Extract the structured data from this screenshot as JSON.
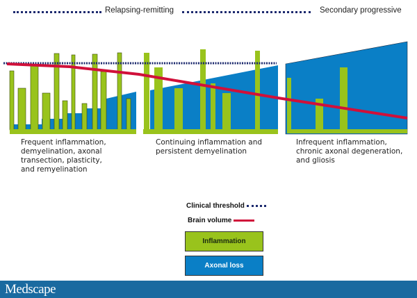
{
  "header": {
    "phase1": "Relapsing-remitting",
    "phase2": "Secondary progressive"
  },
  "captions": [
    "Frequent inflammation,\ndemyelination, axonal\ntransection, plasticity,\nand remyelination",
    "Continuing inflammation and\npersistent demyelination",
    "Infrequent inflammation,\nchronic axonal degeneration,\nand gliosis"
  ],
  "legend": {
    "threshold": "Clinical threshold",
    "brain_volume": "Brain volume",
    "inflammation": "Inflammation",
    "axonal_loss": "Axonal loss"
  },
  "colors": {
    "inflammation": "#99c31c",
    "axonal_loss": "#0a7fc6",
    "brain_volume": "#d0103a",
    "threshold": "#1c2a6e",
    "footer": "#1a6aa0"
  },
  "footer": {
    "logo": "Medscape"
  }
}
